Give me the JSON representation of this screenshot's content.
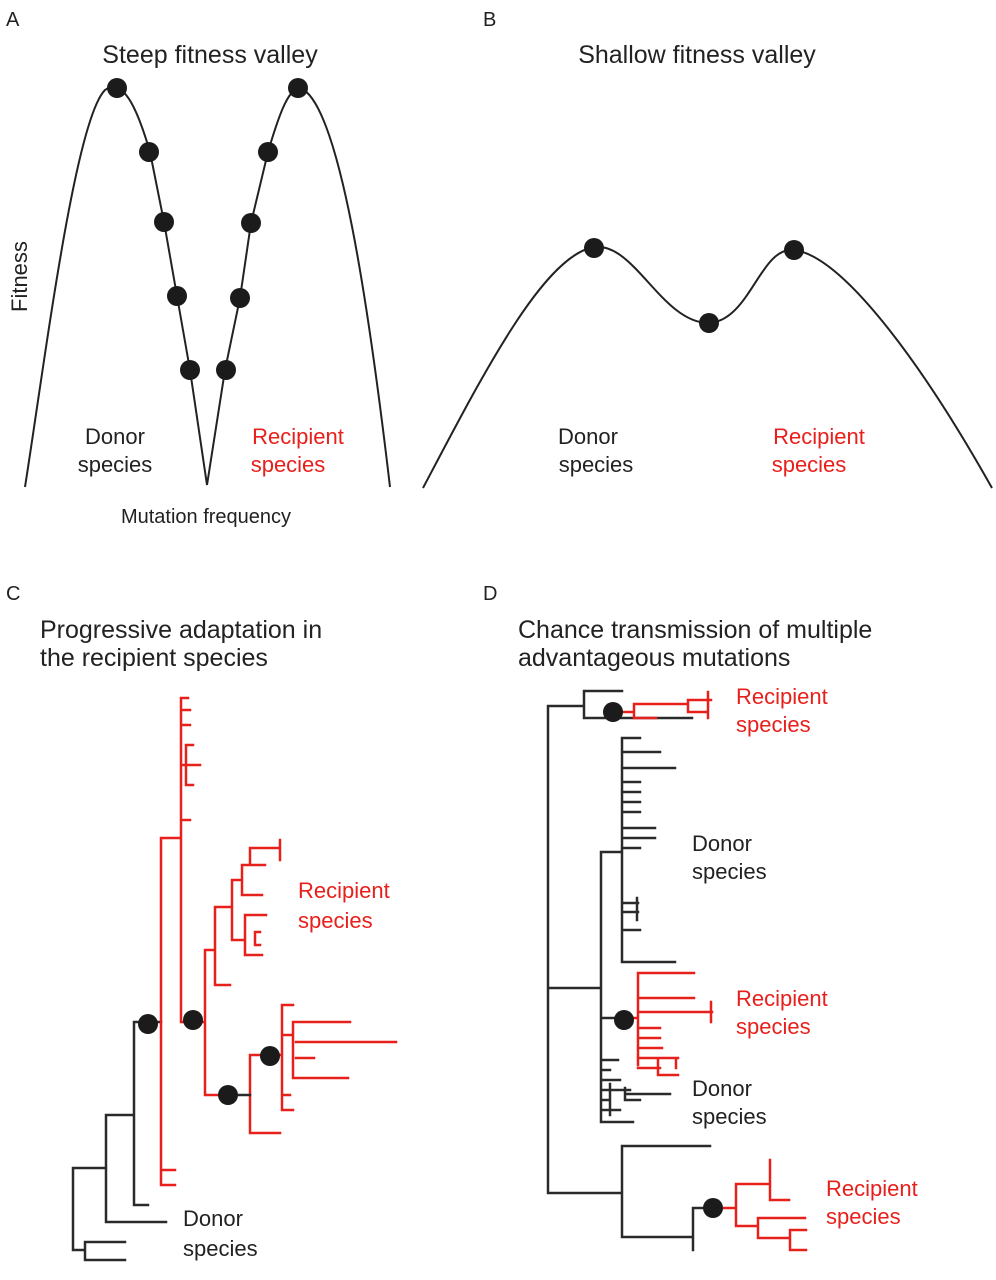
{
  "panel_a": {
    "letter": "A",
    "title": "Steep fitness valley",
    "ylabel": "Fitness",
    "xlabel": "Mutation frequency",
    "donor_line1": "Donor",
    "donor_line2": "species",
    "recipient_line1": "Recipient",
    "recipient_line2": "species"
  },
  "panel_b": {
    "letter": "B",
    "title": "Shallow fitness valley",
    "donor_line1": "Donor",
    "donor_line2": "species",
    "recipient_line1": "Recipient",
    "recipient_line2": "species"
  },
  "panel_c": {
    "letter": "C",
    "title_line1": "Progressive adaptation in",
    "title_line2": "the recipient species",
    "recipient_line1": "Recipient",
    "recipient_line2": "species",
    "donor_line1": "Donor",
    "donor_line2": "species"
  },
  "panel_d": {
    "letter": "D",
    "title_line1": "Chance transmission of multiple",
    "title_line2": "advantageous mutations",
    "labels": [
      {
        "line1": "Recipient",
        "line2": "species"
      },
      {
        "line1": "Donor",
        "line2": "species"
      },
      {
        "line1": "Recipient",
        "line2": "species"
      },
      {
        "line1": "Donor",
        "line2": "species"
      },
      {
        "line1": "Recipient",
        "line2": "species"
      }
    ]
  },
  "colors": {
    "donor": "#2a2a2a",
    "recipient": "#e8201c",
    "dot": "#1b1b1b"
  }
}
